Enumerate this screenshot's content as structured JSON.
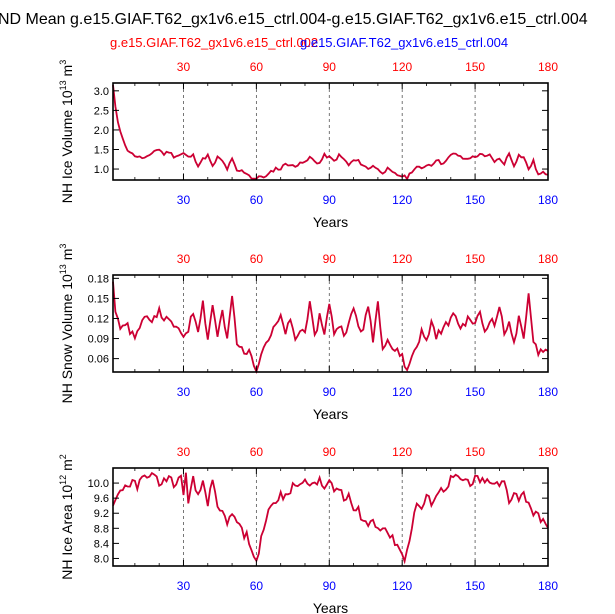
{
  "title": "ND Mean g.e15.GIAF.T62_gx1v6.e15_ctrl.004-g.e15.GIAF.T62_gx1v6.e15_ctrl.004",
  "legend": [
    {
      "label": "g.e15.GIAF.T62_gx1v6.e15_ctrl.002",
      "color": "#ff0000"
    },
    {
      "label": "g.e15.GIAF.T62_gx1v6.e15_ctrl.004",
      "color": "#0000ff"
    }
  ],
  "colors": {
    "series_a": "#ff0000",
    "series_b": "#0000ff",
    "line": "#cc0033",
    "axis": "#000000"
  },
  "chart_data": [
    {
      "type": "line",
      "title": "",
      "xlabel": "Years",
      "ylabel": "NH Ice Volume 10",
      "ylabel_exp": "13",
      "ylabel_unit": " m",
      "ylabel_unit_exp": "3",
      "xlim": [
        1,
        180
      ],
      "ylim": [
        0.72,
        3.2
      ],
      "xticks": [
        30,
        60,
        90,
        120,
        150,
        180
      ],
      "yticks": [
        1.0,
        1.5,
        2.0,
        2.5,
        3.0
      ],
      "ytick_labels": [
        "1.0",
        "1.5",
        "2.0",
        "2.5",
        "3.0"
      ],
      "anchors": [
        [
          1,
          3.15
        ],
        [
          2,
          2.6
        ],
        [
          3,
          2.2
        ],
        [
          4,
          1.95
        ],
        [
          5,
          1.75
        ],
        [
          6,
          1.62
        ],
        [
          7,
          1.5
        ],
        [
          8,
          1.45
        ],
        [
          9,
          1.38
        ],
        [
          10,
          1.35
        ],
        [
          12,
          1.3
        ],
        [
          14,
          1.28
        ],
        [
          16,
          1.32
        ],
        [
          18,
          1.48
        ],
        [
          20,
          1.5
        ],
        [
          22,
          1.38
        ],
        [
          24,
          1.45
        ],
        [
          26,
          1.33
        ],
        [
          28,
          1.35
        ],
        [
          30,
          1.4
        ],
        [
          32,
          1.3
        ],
        [
          34,
          1.35
        ],
        [
          36,
          1.1
        ],
        [
          38,
          1.25
        ],
        [
          40,
          1.35
        ],
        [
          42,
          1.05
        ],
        [
          44,
          1.3
        ],
        [
          46,
          1.2
        ],
        [
          48,
          1.0
        ],
        [
          50,
          1.25
        ],
        [
          52,
          0.95
        ],
        [
          54,
          0.95
        ],
        [
          56,
          0.9
        ],
        [
          58,
          0.78
        ],
        [
          60,
          0.75
        ],
        [
          62,
          0.82
        ],
        [
          64,
          0.8
        ],
        [
          66,
          0.92
        ],
        [
          68,
          1.02
        ],
        [
          70,
          1.0
        ],
        [
          72,
          1.15
        ],
        [
          74,
          1.1
        ],
        [
          76,
          1.05
        ],
        [
          78,
          1.2
        ],
        [
          80,
          1.15
        ],
        [
          82,
          1.3
        ],
        [
          84,
          1.2
        ],
        [
          86,
          1.15
        ],
        [
          88,
          1.35
        ],
        [
          90,
          1.3
        ],
        [
          92,
          1.2
        ],
        [
          94,
          1.35
        ],
        [
          96,
          1.25
        ],
        [
          98,
          1.1
        ],
        [
          100,
          1.22
        ],
        [
          102,
          1.2
        ],
        [
          104,
          1.1
        ],
        [
          106,
          1.0
        ],
        [
          108,
          1.1
        ],
        [
          110,
          0.98
        ],
        [
          112,
          0.92
        ],
        [
          114,
          1.0
        ],
        [
          116,
          0.9
        ],
        [
          118,
          0.85
        ],
        [
          120,
          0.82
        ],
        [
          122,
          0.78
        ],
        [
          124,
          0.95
        ],
        [
          126,
          1.05
        ],
        [
          128,
          1.0
        ],
        [
          130,
          1.12
        ],
        [
          132,
          1.1
        ],
        [
          134,
          1.25
        ],
        [
          136,
          1.15
        ],
        [
          138,
          1.2
        ],
        [
          140,
          1.35
        ],
        [
          142,
          1.4
        ],
        [
          144,
          1.3
        ],
        [
          146,
          1.25
        ],
        [
          148,
          1.3
        ],
        [
          150,
          1.3
        ],
        [
          152,
          1.4
        ],
        [
          154,
          1.3
        ],
        [
          156,
          1.35
        ],
        [
          158,
          1.2
        ],
        [
          160,
          1.25
        ],
        [
          162,
          1.15
        ],
        [
          164,
          1.4
        ],
        [
          166,
          1.1
        ],
        [
          168,
          1.35
        ],
        [
          170,
          1.3
        ],
        [
          172,
          1.0
        ],
        [
          174,
          1.2
        ],
        [
          176,
          0.85
        ],
        [
          178,
          0.9
        ],
        [
          180,
          0.88
        ]
      ],
      "noise": 0.04
    },
    {
      "type": "line",
      "title": "",
      "xlabel": "Years",
      "ylabel": "NH Snow Volume 10",
      "ylabel_exp": "13",
      "ylabel_unit": " m",
      "ylabel_unit_exp": "3",
      "xlim": [
        1,
        180
      ],
      "ylim": [
        0.04,
        0.185
      ],
      "xticks": [
        30,
        60,
        90,
        120,
        150,
        180
      ],
      "yticks": [
        0.06,
        0.09,
        0.12,
        0.15,
        0.18
      ],
      "ytick_labels": [
        "0.06",
        "0.09",
        "0.12",
        "0.15",
        "0.18"
      ],
      "anchors": [
        [
          1,
          0.175
        ],
        [
          2,
          0.13
        ],
        [
          3,
          0.12
        ],
        [
          4,
          0.11
        ],
        [
          6,
          0.115
        ],
        [
          8,
          0.1
        ],
        [
          10,
          0.095
        ],
        [
          12,
          0.105
        ],
        [
          14,
          0.12
        ],
        [
          16,
          0.115
        ],
        [
          18,
          0.125
        ],
        [
          20,
          0.13
        ],
        [
          22,
          0.12
        ],
        [
          24,
          0.115
        ],
        [
          26,
          0.11
        ],
        [
          28,
          0.1
        ],
        [
          30,
          0.095
        ],
        [
          32,
          0.105
        ],
        [
          34,
          0.13
        ],
        [
          36,
          0.105
        ],
        [
          38,
          0.145
        ],
        [
          40,
          0.09
        ],
        [
          42,
          0.14
        ],
        [
          44,
          0.095
        ],
        [
          46,
          0.13
        ],
        [
          48,
          0.085
        ],
        [
          50,
          0.155
        ],
        [
          52,
          0.08
        ],
        [
          54,
          0.075
        ],
        [
          56,
          0.07
        ],
        [
          58,
          0.065
        ],
        [
          60,
          0.045
        ],
        [
          62,
          0.07
        ],
        [
          64,
          0.085
        ],
        [
          66,
          0.095
        ],
        [
          68,
          0.11
        ],
        [
          70,
          0.12
        ],
        [
          72,
          0.1
        ],
        [
          74,
          0.115
        ],
        [
          76,
          0.09
        ],
        [
          78,
          0.1
        ],
        [
          80,
          0.105
        ],
        [
          82,
          0.14
        ],
        [
          84,
          0.09
        ],
        [
          86,
          0.125
        ],
        [
          88,
          0.1
        ],
        [
          90,
          0.14
        ],
        [
          92,
          0.1
        ],
        [
          94,
          0.11
        ],
        [
          96,
          0.1
        ],
        [
          98,
          0.11
        ],
        [
          100,
          0.135
        ],
        [
          102,
          0.11
        ],
        [
          104,
          0.1
        ],
        [
          106,
          0.14
        ],
        [
          108,
          0.09
        ],
        [
          110,
          0.145
        ],
        [
          112,
          0.08
        ],
        [
          114,
          0.09
        ],
        [
          116,
          0.075
        ],
        [
          118,
          0.07
        ],
        [
          120,
          0.065
        ],
        [
          122,
          0.04
        ],
        [
          124,
          0.065
        ],
        [
          126,
          0.08
        ],
        [
          128,
          0.1
        ],
        [
          130,
          0.085
        ],
        [
          132,
          0.115
        ],
        [
          134,
          0.095
        ],
        [
          136,
          0.1
        ],
        [
          138,
          0.11
        ],
        [
          140,
          0.12
        ],
        [
          142,
          0.125
        ],
        [
          144,
          0.105
        ],
        [
          146,
          0.115
        ],
        [
          148,
          0.12
        ],
        [
          150,
          0.11
        ],
        [
          152,
          0.13
        ],
        [
          154,
          0.1
        ],
        [
          156,
          0.12
        ],
        [
          158,
          0.11
        ],
        [
          160,
          0.14
        ],
        [
          162,
          0.095
        ],
        [
          164,
          0.12
        ],
        [
          166,
          0.08
        ],
        [
          168,
          0.12
        ],
        [
          170,
          0.085
        ],
        [
          172,
          0.155
        ],
        [
          174,
          0.09
        ],
        [
          176,
          0.07
        ],
        [
          178,
          0.075
        ],
        [
          180,
          0.07
        ]
      ],
      "noise": 0.006
    },
    {
      "type": "line",
      "title": "",
      "xlabel": "Years",
      "ylabel": "NH Ice Area 10",
      "ylabel_exp": "12",
      "ylabel_unit": " m",
      "ylabel_unit_exp": "2",
      "xlim": [
        1,
        180
      ],
      "ylim": [
        7.8,
        10.4
      ],
      "xticks": [
        30,
        60,
        90,
        120,
        150,
        180
      ],
      "yticks": [
        8.0,
        8.4,
        8.8,
        9.2,
        9.6,
        10.0
      ],
      "ytick_labels": [
        "8.0",
        "8.4",
        "8.8",
        "9.2",
        "9.6",
        "10.0"
      ],
      "anchors": [
        [
          1,
          9.4
        ],
        [
          3,
          9.7
        ],
        [
          5,
          9.9
        ],
        [
          7,
          9.95
        ],
        [
          9,
          10.0
        ],
        [
          11,
          9.9
        ],
        [
          13,
          10.1
        ],
        [
          15,
          10.25
        ],
        [
          17,
          10.2
        ],
        [
          19,
          10.1
        ],
        [
          21,
          9.95
        ],
        [
          23,
          10.15
        ],
        [
          25,
          10.1
        ],
        [
          27,
          9.9
        ],
        [
          29,
          10.2
        ],
        [
          30,
          9.8
        ],
        [
          31,
          10.2
        ],
        [
          32,
          9.4
        ],
        [
          34,
          10.1
        ],
        [
          36,
          9.6
        ],
        [
          38,
          10.05
        ],
        [
          40,
          9.5
        ],
        [
          42,
          10.0
        ],
        [
          44,
          9.3
        ],
        [
          46,
          9.2
        ],
        [
          48,
          9.0
        ],
        [
          50,
          9.1
        ],
        [
          52,
          9.0
        ],
        [
          54,
          8.7
        ],
        [
          56,
          8.6
        ],
        [
          58,
          8.3
        ],
        [
          59,
          8.0
        ],
        [
          60,
          7.85
        ],
        [
          61,
          8.2
        ],
        [
          62,
          8.6
        ],
        [
          64,
          9.0
        ],
        [
          66,
          9.5
        ],
        [
          68,
          9.4
        ],
        [
          70,
          9.7
        ],
        [
          72,
          9.6
        ],
        [
          74,
          9.8
        ],
        [
          76,
          10.0
        ],
        [
          78,
          9.9
        ],
        [
          80,
          10.2
        ],
        [
          82,
          10.0
        ],
        [
          84,
          9.9
        ],
        [
          86,
          10.1
        ],
        [
          88,
          9.95
        ],
        [
          90,
          10.0
        ],
        [
          92,
          9.8
        ],
        [
          94,
          9.9
        ],
        [
          96,
          9.5
        ],
        [
          98,
          9.7
        ],
        [
          100,
          9.2
        ],
        [
          102,
          9.3
        ],
        [
          104,
          9.0
        ],
        [
          106,
          8.9
        ],
        [
          108,
          9.0
        ],
        [
          110,
          8.8
        ],
        [
          112,
          8.9
        ],
        [
          114,
          8.7
        ],
        [
          116,
          8.5
        ],
        [
          118,
          8.4
        ],
        [
          120,
          8.1
        ],
        [
          121,
          7.9
        ],
        [
          122,
          8.3
        ],
        [
          124,
          8.8
        ],
        [
          126,
          9.5
        ],
        [
          128,
          9.3
        ],
        [
          130,
          9.6
        ],
        [
          132,
          9.5
        ],
        [
          134,
          9.7
        ],
        [
          136,
          9.8
        ],
        [
          138,
          9.9
        ],
        [
          140,
          10.1
        ],
        [
          142,
          10.2
        ],
        [
          144,
          10.0
        ],
        [
          146,
          10.1
        ],
        [
          148,
          9.9
        ],
        [
          150,
          10.15
        ],
        [
          152,
          10.0
        ],
        [
          154,
          10.1
        ],
        [
          156,
          9.95
        ],
        [
          158,
          10.0
        ],
        [
          160,
          9.9
        ],
        [
          162,
          10.05
        ],
        [
          164,
          9.5
        ],
        [
          166,
          9.8
        ],
        [
          168,
          9.6
        ],
        [
          170,
          9.7
        ],
        [
          172,
          9.5
        ],
        [
          174,
          9.2
        ],
        [
          176,
          9.1
        ],
        [
          178,
          9.05
        ],
        [
          180,
          8.7
        ]
      ],
      "noise": 0.12
    }
  ]
}
